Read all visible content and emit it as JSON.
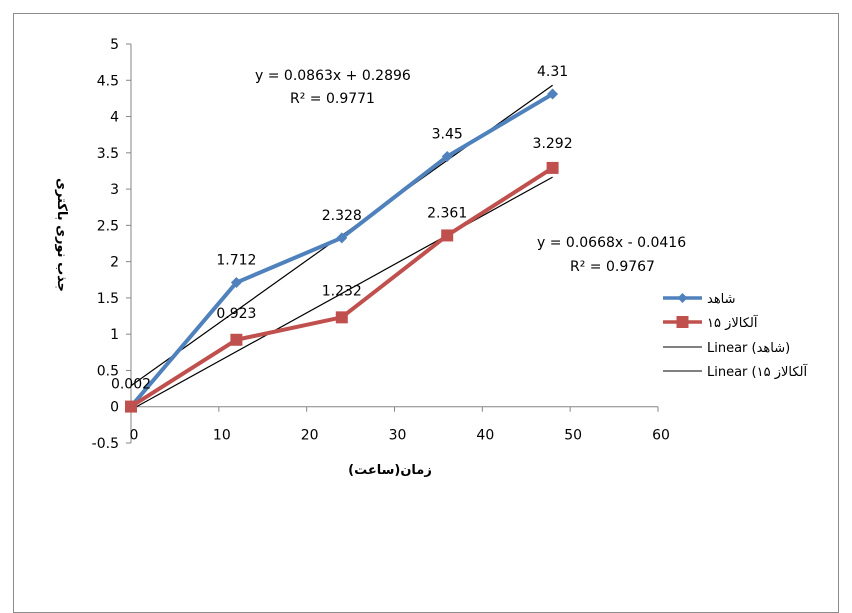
{
  "chart_data": {
    "type": "line",
    "title": "",
    "xlabel": "زمان(ساعت)",
    "ylabel": "جذب نوری باکتری",
    "xlim": [
      0,
      60
    ],
    "ylim": [
      -0.5,
      5
    ],
    "x_ticks": [
      "0",
      "10",
      "20",
      "30",
      "40",
      "50",
      "60"
    ],
    "y_ticks": [
      "-0.5",
      "0",
      "0.5",
      "1",
      "1.5",
      "2",
      "2.5",
      "3",
      "3.5",
      "4",
      "4.5",
      "5"
    ],
    "x": [
      0,
      12,
      24,
      36,
      48
    ],
    "series": [
      {
        "name": "شاهد",
        "values": [
          0.002,
          1.712,
          2.328,
          3.45,
          4.31
        ],
        "data_labels": [
          "0.002",
          "1.712",
          "2.328",
          "3.45",
          "4.31"
        ],
        "color": "#4f81bd",
        "marker": "diamond"
      },
      {
        "name": "آلکالاز ۱۵",
        "values": [
          0.002,
          0.923,
          1.232,
          2.361,
          3.292
        ],
        "data_labels": [
          "",
          "0.923",
          "1.232",
          "2.361",
          "3.292"
        ],
        "color": "#c0504d",
        "marker": "square"
      }
    ],
    "trendlines": [
      {
        "name": "Linear (شاهد)",
        "slope": 0.0863,
        "intercept": 0.2896,
        "equation": "y = 0.0863x + 0.2896",
        "r2": "R² = 0.9771",
        "color": "#000000"
      },
      {
        "name": "Linear (آلکالاز ۱۵)",
        "slope": 0.0668,
        "intercept": -0.0416,
        "equation": "y = 0.0668x - 0.0416",
        "r2": "R² = 0.9767",
        "color": "#000000"
      }
    ],
    "legend": [
      "شاهد",
      "آلکالاز ۱۵",
      "Linear (شاهد)",
      "Linear (آلکالاز ۱۵"
    ],
    "legend_position": "right",
    "grid": false
  }
}
